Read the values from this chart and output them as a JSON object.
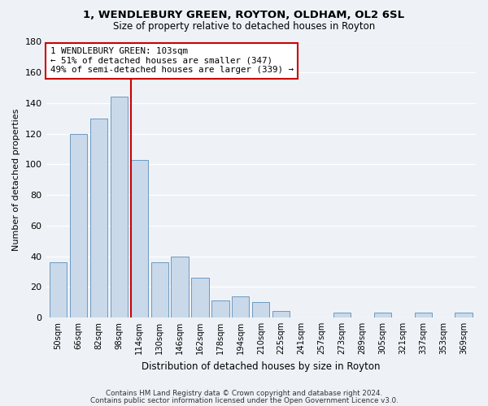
{
  "title": "1, WENDLEBURY GREEN, ROYTON, OLDHAM, OL2 6SL",
  "subtitle": "Size of property relative to detached houses in Royton",
  "xlabel": "Distribution of detached houses by size in Royton",
  "ylabel": "Number of detached properties",
  "categories": [
    "50sqm",
    "66sqm",
    "82sqm",
    "98sqm",
    "114sqm",
    "130sqm",
    "146sqm",
    "162sqm",
    "178sqm",
    "194sqm",
    "210sqm",
    "225sqm",
    "241sqm",
    "257sqm",
    "273sqm",
    "289sqm",
    "305sqm",
    "321sqm",
    "337sqm",
    "353sqm",
    "369sqm"
  ],
  "values": [
    36,
    120,
    130,
    144,
    103,
    36,
    40,
    26,
    11,
    14,
    10,
    4,
    0,
    0,
    3,
    0,
    3,
    0,
    3,
    0,
    3
  ],
  "bar_color": "#c9d9ea",
  "bar_edge_color": "#5b8db8",
  "vline_color": "#cc0000",
  "annotation_title": "1 WENDLEBURY GREEN: 103sqm",
  "annotation_line1": "← 51% of detached houses are smaller (347)",
  "annotation_line2": "49% of semi-detached houses are larger (339) →",
  "annotation_box_color": "#ffffff",
  "annotation_box_edge": "#cc0000",
  "ylim": [
    0,
    180
  ],
  "yticks": [
    0,
    20,
    40,
    60,
    80,
    100,
    120,
    140,
    160,
    180
  ],
  "footer1": "Contains HM Land Registry data © Crown copyright and database right 2024.",
  "footer2": "Contains public sector information licensed under the Open Government Licence v3.0.",
  "background_color": "#eef2f7",
  "grid_color": "#ffffff",
  "title_fontsize": 9.5,
  "subtitle_fontsize": 8.5
}
